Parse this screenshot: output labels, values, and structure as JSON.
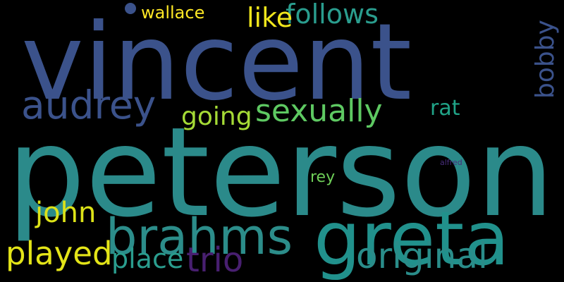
{
  "words": [
    {
      "text": "peterson",
      "color": "#2b8a8a"
    },
    {
      "text": "vincent",
      "color": "#3b528b"
    },
    {
      "text": "greta",
      "color": "#21918c"
    },
    {
      "text": "brahms",
      "color": "#2c8d8a"
    },
    {
      "text": "audrey",
      "color": "#3b528b"
    },
    {
      "text": "original",
      "color": "#2a8d8a"
    },
    {
      "text": "sexually",
      "color": "#5ec962"
    },
    {
      "text": "follows",
      "color": "#2a9d8e"
    },
    {
      "text": "played",
      "color": "#e3e418"
    },
    {
      "text": "john",
      "color": "#dde318"
    },
    {
      "text": "trio",
      "color": "#481f70"
    },
    {
      "text": "place",
      "color": "#2a9d8e"
    },
    {
      "text": "going",
      "color": "#a5db36"
    },
    {
      "text": "like",
      "color": "#f0e61c"
    },
    {
      "text": "bobby",
      "color": "#3b528b"
    },
    {
      "text": "rat",
      "color": "#20a387"
    },
    {
      "text": "rey",
      "color": "#6ece58"
    },
    {
      "text": "wallace",
      "color": "#fde725"
    },
    {
      "text": "alfred",
      "color": "#472d7b"
    }
  ]
}
